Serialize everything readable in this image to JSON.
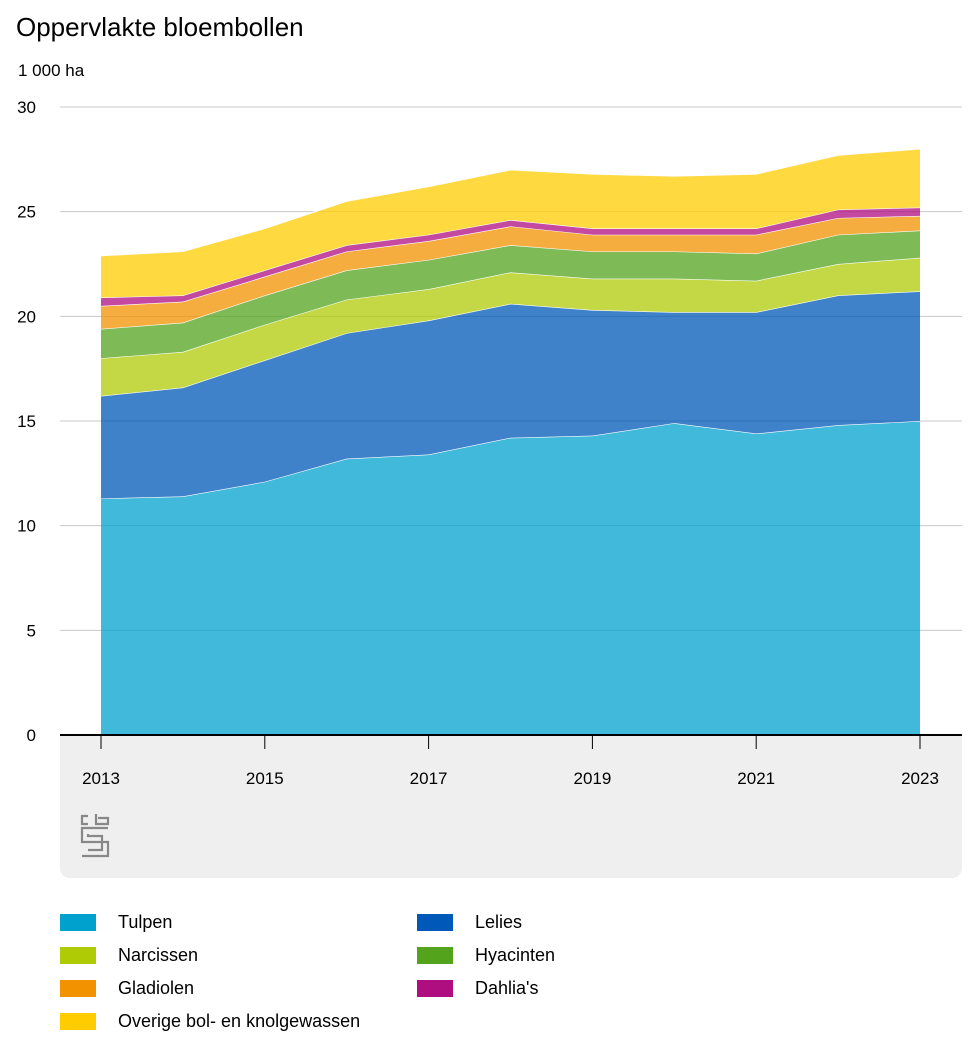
{
  "title": "Oppervlakte bloembollen",
  "unit": "1 000 ha",
  "chart_data": {
    "type": "area",
    "stacked": true,
    "title": "Oppervlakte bloembollen",
    "ylabel": "1 000 ha",
    "ylim": [
      0,
      30
    ],
    "yticks": [
      0,
      5,
      10,
      15,
      20,
      25,
      30
    ],
    "x": [
      2013,
      2014,
      2015,
      2016,
      2017,
      2018,
      2019,
      2020,
      2021,
      2022,
      2023
    ],
    "xticks": [
      "2013",
      "2015",
      "2017",
      "2019",
      "2021",
      "2023"
    ],
    "grid": true,
    "legend_position": "bottom",
    "series": [
      {
        "name": "Tulpen",
        "color": "#00a1cd",
        "values": [
          11.3,
          11.4,
          12.1,
          13.2,
          13.4,
          14.2,
          14.3,
          14.9,
          14.4,
          14.8,
          15.0
        ]
      },
      {
        "name": "Lelies",
        "color": "#0058b8",
        "values": [
          4.9,
          5.2,
          5.8,
          6.0,
          6.4,
          6.4,
          6.0,
          5.3,
          5.8,
          6.2,
          6.2
        ]
      },
      {
        "name": "Narcissen",
        "color": "#afcb05",
        "values": [
          1.8,
          1.7,
          1.7,
          1.6,
          1.5,
          1.5,
          1.5,
          1.6,
          1.5,
          1.5,
          1.6
        ]
      },
      {
        "name": "Hyacinten",
        "color": "#53a31d",
        "values": [
          1.4,
          1.4,
          1.4,
          1.4,
          1.4,
          1.3,
          1.3,
          1.3,
          1.3,
          1.4,
          1.3
        ]
      },
      {
        "name": "Gladiolen",
        "color": "#f39200",
        "values": [
          1.1,
          1.0,
          0.9,
          0.9,
          0.9,
          0.9,
          0.8,
          0.8,
          0.9,
          0.8,
          0.7
        ]
      },
      {
        "name": "Dahlia's",
        "color": "#af0e80",
        "values": [
          0.4,
          0.3,
          0.3,
          0.3,
          0.3,
          0.3,
          0.3,
          0.3,
          0.3,
          0.4,
          0.4
        ]
      },
      {
        "name": "Overige bol- en knolgewassen",
        "color": "#ffcc00",
        "values": [
          2.0,
          2.1,
          2.0,
          2.1,
          2.3,
          2.4,
          2.6,
          2.5,
          2.6,
          2.6,
          2.8
        ]
      }
    ]
  },
  "legend": {
    "items": [
      {
        "label": "Tulpen",
        "color": "#00a1cd"
      },
      {
        "label": "Lelies",
        "color": "#0058b8"
      },
      {
        "label": "Narcissen",
        "color": "#afcb05"
      },
      {
        "label": "Hyacinten",
        "color": "#53a31d"
      },
      {
        "label": "Gladiolen",
        "color": "#f39200"
      },
      {
        "label": "Dahlia's",
        "color": "#af0e80"
      },
      {
        "label": "Overige bol- en knolgewassen",
        "color": "#ffcc00"
      }
    ]
  },
  "logo": {
    "name": "cbs-logo",
    "text": "cbs"
  }
}
